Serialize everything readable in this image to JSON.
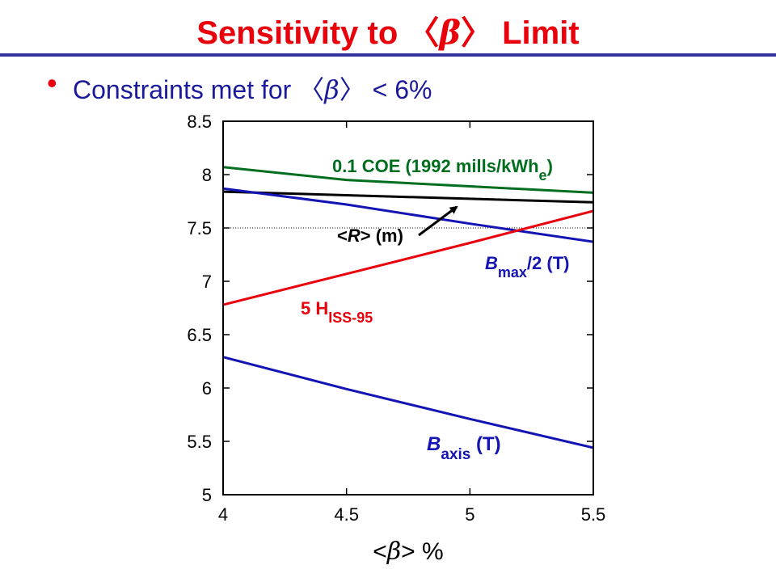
{
  "slide": {
    "title_pre": "Sensitivity to ",
    "title_lang": "〈",
    "title_beta": "β",
    "title_rang": "〉",
    "title_post": " Limit",
    "bullet_pre": "Constraints met for ",
    "bullet_lang": "〈",
    "bullet_beta": "β",
    "bullet_rang": "〉",
    "bullet_post": " < 6%"
  },
  "colors": {
    "title": "#e8000b",
    "bullet_text": "#1a1a9a",
    "rule": "#3232a0",
    "green": "#006e1e",
    "blue": "#1414b4",
    "red": "#e8000b",
    "black": "#000000"
  },
  "chart_data": {
    "type": "line",
    "xlim": [
      4,
      5.5
    ],
    "ylim": [
      5,
      8.5
    ],
    "x_ticks": [
      "4",
      "4.5",
      "5",
      "5.5"
    ],
    "y_ticks": [
      "5",
      "5.5",
      "6",
      "6.5",
      "7",
      "7.5",
      "8",
      "8.5"
    ],
    "xlabel_parts": [
      "<",
      "β",
      "> %"
    ],
    "reference_line_y": 7.5,
    "series": [
      {
        "key": "coe",
        "color": "#006e1e",
        "x": [
          4,
          4.5,
          5,
          5.5
        ],
        "y": [
          8.07,
          7.95,
          7.89,
          7.83
        ],
        "label_parts": [
          {
            "t": "0.1 COE (1992 mills/kWh",
            "sub": false
          },
          {
            "t": "e",
            "sub": true
          },
          {
            "t": ")",
            "sub": false
          }
        ]
      },
      {
        "key": "radius",
        "color": "#000000",
        "x": [
          4,
          5.5
        ],
        "y": [
          7.84,
          7.74
        ],
        "label_parts": [
          {
            "t": "<",
            "sub": false
          },
          {
            "t": "R",
            "sub": false,
            "italic": true
          },
          {
            "t": "> (m)",
            "sub": false
          }
        ]
      },
      {
        "key": "bmax",
        "color": "#1414b4",
        "x": [
          4,
          4.5,
          5,
          5.5
        ],
        "y": [
          7.87,
          7.72,
          7.54,
          7.37
        ],
        "label_parts": [
          {
            "t": "B",
            "sub": false,
            "italic": true
          },
          {
            "t": "max",
            "sub": true
          },
          {
            "t": "/2 (T)",
            "sub": false
          }
        ]
      },
      {
        "key": "hiss",
        "color": "#e8000b",
        "x": [
          4,
          4.5,
          5,
          5.5
        ],
        "y": [
          6.78,
          7.07,
          7.36,
          7.66
        ],
        "label_parts": [
          {
            "t": "5 H",
            "sub": false
          },
          {
            "t": "ISS-95",
            "sub": true
          }
        ]
      },
      {
        "key": "baxis",
        "color": "#1414b4",
        "x": [
          4,
          4.5,
          5,
          5.5
        ],
        "y": [
          6.29,
          5.99,
          5.71,
          5.44
        ],
        "label_parts": [
          {
            "t": "B",
            "sub": false,
            "italic": true
          },
          {
            "t": "axis",
            "sub": true
          },
          {
            "t": " (T)",
            "sub": false
          }
        ]
      }
    ]
  }
}
